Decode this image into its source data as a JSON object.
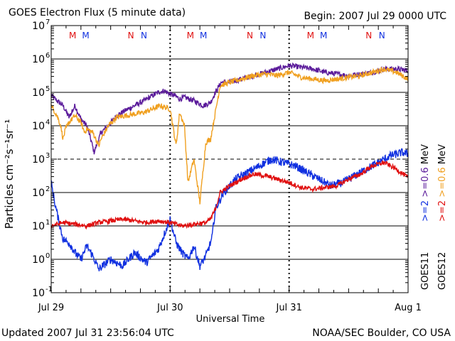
{
  "header": {
    "title": "GOES Electron Flux (5 minute data)",
    "begin": "Begin: 2007 Jul 29 0000 UTC"
  },
  "footer": {
    "updated": "Updated 2007 Jul 31 23:56:04 UTC",
    "credit": "NOAA/SEC Boulder, CO USA"
  },
  "colors": {
    "goes11_06": "#5a1a9a",
    "goes12_06": "#f0a020",
    "goes11_2": "#1030e0",
    "goes12_2": "#e01010",
    "m_marker": "#e01010",
    "n_marker": "#1030e0"
  },
  "chart_data": {
    "type": "line",
    "xlabel": "Universal Time",
    "ylabel": "Particles cm⁻²s⁻¹sr⁻¹",
    "ylim_log10": [
      -1,
      7
    ],
    "xlim_days": [
      0,
      3
    ],
    "x_tick_labels": [
      "Jul 29",
      "Jul 30",
      "Jul 31",
      "Aug 1"
    ],
    "y_tick_labels": [
      {
        "base": "10",
        "exp": "-1"
      },
      {
        "base": "10",
        "exp": "0"
      },
      {
        "base": "10",
        "exp": "1"
      },
      {
        "base": "10",
        "exp": "2"
      },
      {
        "base": "10",
        "exp": "3"
      },
      {
        "base": "10",
        "exp": "4"
      },
      {
        "base": "10",
        "exp": "5"
      },
      {
        "base": "10",
        "exp": "6"
      },
      {
        "base": "10",
        "exp": "7"
      }
    ],
    "threshold_log10": 3,
    "right_labels": {
      "goes11": "GOES11",
      "goes12": "GOES12",
      "legend_06_goes11": ">=0.6",
      "legend_2_goes11": ">=2",
      "legend_06_goes12": ">=0.6",
      "legend_2_goes12": ">=2",
      "unit": "MeV"
    },
    "markers": [
      {
        "label": "M",
        "x": 0.18,
        "color": "red"
      },
      {
        "label": "M",
        "x": 0.29,
        "color": "blue"
      },
      {
        "label": "N",
        "x": 0.67,
        "color": "red"
      },
      {
        "label": "N",
        "x": 0.78,
        "color": "blue"
      },
      {
        "label": "M",
        "x": 1.17,
        "color": "red"
      },
      {
        "label": "M",
        "x": 1.28,
        "color": "blue"
      },
      {
        "label": "N",
        "x": 1.67,
        "color": "red"
      },
      {
        "label": "N",
        "x": 1.78,
        "color": "blue"
      },
      {
        "label": "M",
        "x": 2.18,
        "color": "red"
      },
      {
        "label": "M",
        "x": 2.29,
        "color": "blue"
      },
      {
        "label": "N",
        "x": 2.67,
        "color": "red"
      },
      {
        "label": "N",
        "x": 2.78,
        "color": "blue"
      }
    ],
    "series": [
      {
        "name": "GOES11 >=0.6 MeV",
        "color_key": "goes11_06",
        "points": [
          [
            0.0,
            4.9
          ],
          [
            0.05,
            4.75
          ],
          [
            0.1,
            4.6
          ],
          [
            0.15,
            4.25
          ],
          [
            0.2,
            4.6
          ],
          [
            0.25,
            4.2
          ],
          [
            0.3,
            4.0
          ],
          [
            0.34,
            3.5
          ],
          [
            0.36,
            3.2
          ],
          [
            0.38,
            3.4
          ],
          [
            0.42,
            3.8
          ],
          [
            0.48,
            4.0
          ],
          [
            0.55,
            4.3
          ],
          [
            0.62,
            4.45
          ],
          [
            0.7,
            4.6
          ],
          [
            0.78,
            4.75
          ],
          [
            0.85,
            4.9
          ],
          [
            0.9,
            5.0
          ],
          [
            0.95,
            5.05
          ],
          [
            1.0,
            4.95
          ],
          [
            1.04,
            4.9
          ],
          [
            1.08,
            4.8
          ],
          [
            1.12,
            4.85
          ],
          [
            1.2,
            4.75
          ],
          [
            1.28,
            4.6
          ],
          [
            1.34,
            4.7
          ],
          [
            1.38,
            5.0
          ],
          [
            1.43,
            5.3
          ],
          [
            1.5,
            5.3
          ],
          [
            1.6,
            5.4
          ],
          [
            1.7,
            5.5
          ],
          [
            1.8,
            5.6
          ],
          [
            1.9,
            5.7
          ],
          [
            2.0,
            5.8
          ],
          [
            2.1,
            5.75
          ],
          [
            2.2,
            5.7
          ],
          [
            2.3,
            5.6
          ],
          [
            2.4,
            5.55
          ],
          [
            2.5,
            5.5
          ],
          [
            2.6,
            5.55
          ],
          [
            2.7,
            5.6
          ],
          [
            2.8,
            5.7
          ],
          [
            2.9,
            5.7
          ],
          [
            3.0,
            5.65
          ]
        ]
      },
      {
        "name": "GOES12 >=0.6 MeV",
        "color_key": "goes12_06",
        "points": [
          [
            0.0,
            4.6
          ],
          [
            0.05,
            4.3
          ],
          [
            0.08,
            4.0
          ],
          [
            0.1,
            3.6
          ],
          [
            0.12,
            3.9
          ],
          [
            0.15,
            4.1
          ],
          [
            0.2,
            4.3
          ],
          [
            0.25,
            4.1
          ],
          [
            0.28,
            3.8
          ],
          [
            0.3,
            3.9
          ],
          [
            0.35,
            3.8
          ],
          [
            0.4,
            3.4
          ],
          [
            0.42,
            3.6
          ],
          [
            0.48,
            4.0
          ],
          [
            0.55,
            4.25
          ],
          [
            0.62,
            4.3
          ],
          [
            0.7,
            4.35
          ],
          [
            0.78,
            4.4
          ],
          [
            0.85,
            4.5
          ],
          [
            0.92,
            4.6
          ],
          [
            1.0,
            4.5
          ],
          [
            1.05,
            3.4
          ],
          [
            1.08,
            4.4
          ],
          [
            1.12,
            4.0
          ],
          [
            1.15,
            2.3
          ],
          [
            1.2,
            3.0
          ],
          [
            1.25,
            1.7
          ],
          [
            1.3,
            3.5
          ],
          [
            1.34,
            3.6
          ],
          [
            1.38,
            4.4
          ],
          [
            1.42,
            5.2
          ],
          [
            1.5,
            5.3
          ],
          [
            1.6,
            5.4
          ],
          [
            1.7,
            5.5
          ],
          [
            1.8,
            5.55
          ],
          [
            1.9,
            5.5
          ],
          [
            2.0,
            5.6
          ],
          [
            2.1,
            5.45
          ],
          [
            2.2,
            5.4
          ],
          [
            2.3,
            5.35
          ],
          [
            2.4,
            5.4
          ],
          [
            2.5,
            5.45
          ],
          [
            2.6,
            5.5
          ],
          [
            2.7,
            5.6
          ],
          [
            2.8,
            5.7
          ],
          [
            2.9,
            5.6
          ],
          [
            3.0,
            5.4
          ]
        ]
      },
      {
        "name": "GOES11 >=2 MeV",
        "color_key": "goes11_2",
        "points": [
          [
            0.0,
            2.3
          ],
          [
            0.03,
            1.7
          ],
          [
            0.06,
            1.2
          ],
          [
            0.1,
            0.6
          ],
          [
            0.15,
            0.5
          ],
          [
            0.2,
            0.2
          ],
          [
            0.25,
            0.0
          ],
          [
            0.3,
            0.4
          ],
          [
            0.35,
            0.1
          ],
          [
            0.4,
            -0.3
          ],
          [
            0.5,
            0.0
          ],
          [
            0.6,
            -0.2
          ],
          [
            0.7,
            0.2
          ],
          [
            0.8,
            -0.1
          ],
          [
            0.9,
            0.3
          ],
          [
            1.0,
            1.2
          ],
          [
            1.05,
            0.5
          ],
          [
            1.1,
            0.2
          ],
          [
            1.15,
            0.0
          ],
          [
            1.2,
            0.4
          ],
          [
            1.25,
            -0.2
          ],
          [
            1.3,
            0.1
          ],
          [
            1.35,
            0.6
          ],
          [
            1.38,
            1.5
          ],
          [
            1.45,
            2.0
          ],
          [
            1.55,
            2.4
          ],
          [
            1.65,
            2.6
          ],
          [
            1.75,
            2.8
          ],
          [
            1.85,
            3.0
          ],
          [
            1.95,
            2.9
          ],
          [
            2.05,
            2.8
          ],
          [
            2.15,
            2.6
          ],
          [
            2.25,
            2.4
          ],
          [
            2.3,
            2.3
          ],
          [
            2.35,
            2.2
          ],
          [
            2.45,
            2.3
          ],
          [
            2.55,
            2.5
          ],
          [
            2.65,
            2.7
          ],
          [
            2.75,
            2.9
          ],
          [
            2.85,
            3.1
          ],
          [
            2.95,
            3.2
          ],
          [
            3.0,
            3.15
          ]
        ]
      },
      {
        "name": "GOES12 >=2 MeV",
        "color_key": "goes12_2",
        "points": [
          [
            0.0,
            1.0
          ],
          [
            0.1,
            1.1
          ],
          [
            0.2,
            1.05
          ],
          [
            0.3,
            1.0
          ],
          [
            0.4,
            1.1
          ],
          [
            0.5,
            1.15
          ],
          [
            0.6,
            1.2
          ],
          [
            0.7,
            1.15
          ],
          [
            0.8,
            1.1
          ],
          [
            0.9,
            1.15
          ],
          [
            1.0,
            1.1
          ],
          [
            1.1,
            1.0
          ],
          [
            1.2,
            1.05
          ],
          [
            1.3,
            1.1
          ],
          [
            1.34,
            1.2
          ],
          [
            1.38,
            1.5
          ],
          [
            1.42,
            2.0
          ],
          [
            1.5,
            2.2
          ],
          [
            1.6,
            2.4
          ],
          [
            1.7,
            2.55
          ],
          [
            1.8,
            2.5
          ],
          [
            1.9,
            2.4
          ],
          [
            2.0,
            2.3
          ],
          [
            2.1,
            2.15
          ],
          [
            2.2,
            2.1
          ],
          [
            2.3,
            2.15
          ],
          [
            2.4,
            2.2
          ],
          [
            2.5,
            2.4
          ],
          [
            2.6,
            2.55
          ],
          [
            2.7,
            2.8
          ],
          [
            2.8,
            2.9
          ],
          [
            2.9,
            2.7
          ],
          [
            3.0,
            2.45
          ]
        ]
      }
    ]
  }
}
